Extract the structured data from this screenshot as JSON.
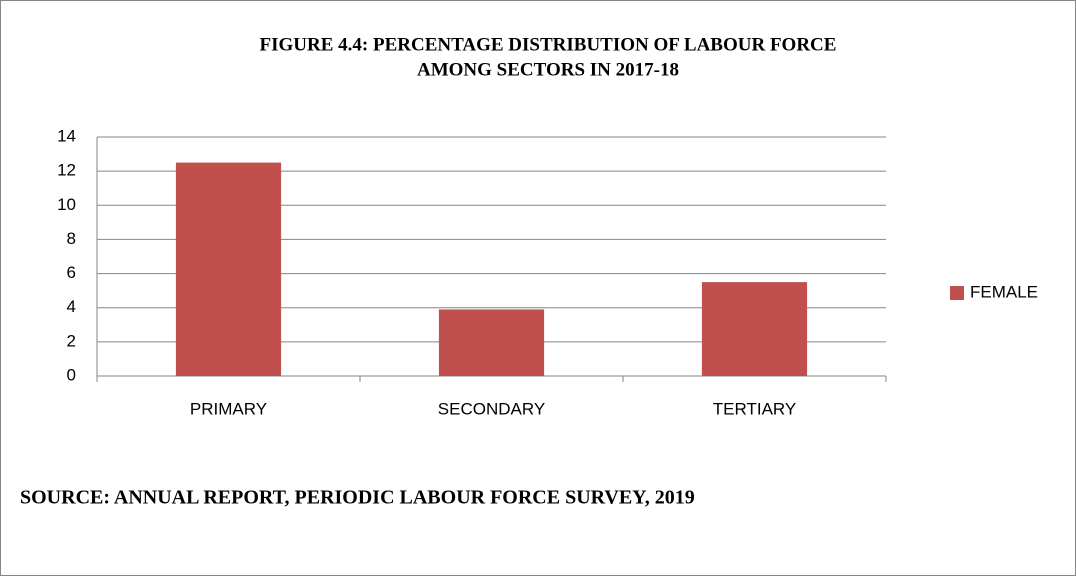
{
  "chart_data": {
    "type": "bar",
    "title": [
      "FIGURE 4.4: PERCENTAGE DISTRIBUTION OF LABOUR FORCE",
      "AMONG SECTORS IN 2017-18"
    ],
    "categories": [
      "PRIMARY",
      "SECONDARY",
      "TERTIARY"
    ],
    "series": [
      {
        "name": "FEMALE",
        "color": "#c0504d",
        "values": [
          12.5,
          3.9,
          5.5
        ]
      }
    ],
    "ylim": [
      0,
      14
    ],
    "yticks": [
      0,
      2,
      4,
      6,
      8,
      10,
      12,
      14
    ],
    "grid": true,
    "legend": "right",
    "source": "SOURCE: ANNUAL REPORT, PERIODIC LABOUR FORCE SURVEY, 2019"
  }
}
